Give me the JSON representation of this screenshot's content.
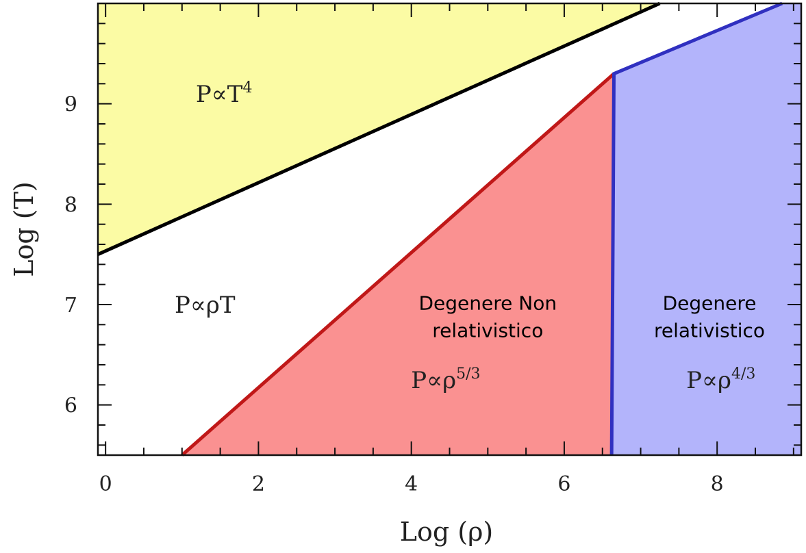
{
  "chart_data": {
    "type": "area",
    "xlabel": "Log (ρ)",
    "ylabel": "Log (T)",
    "xlim": [
      -0.1,
      9.1
    ],
    "ylim": [
      5.5,
      10.0
    ],
    "x_ticks": [
      "0",
      "2",
      "4",
      "6",
      "8"
    ],
    "y_ticks": [
      "6",
      "7",
      "8",
      "9"
    ],
    "boundaries": [
      {
        "color": "#000000",
        "points": [
          [
            -0.1,
            7.5
          ],
          [
            7.25,
            10.0
          ]
        ]
      },
      {
        "color": "#c01818",
        "points": [
          [
            1.0,
            5.5
          ],
          [
            6.65,
            9.3
          ]
        ]
      },
      {
        "color": "#3030c0",
        "points": [
          [
            6.62,
            5.5
          ],
          [
            6.65,
            9.3
          ],
          [
            8.85,
            10.0
          ]
        ]
      }
    ],
    "regions": [
      {
        "color": "#fbfba4",
        "formula_base": "P∝T",
        "formula_exp": "4",
        "label_position": [
          1.55,
          9.1
        ],
        "polygon": [
          [
            -0.1,
            7.5
          ],
          [
            7.25,
            10.0
          ],
          [
            -0.1,
            10.0
          ]
        ]
      },
      {
        "color": "#ffffff",
        "formula_base": "P∝ρT",
        "formula_exp": "",
        "label_position": [
          1.3,
          7.0
        ],
        "polygon": []
      },
      {
        "color": "#fa9191",
        "formula_base": "P∝ρ",
        "formula_exp": "5/3",
        "title_lines": [
          "Degenere Non",
          "relativistico"
        ],
        "title_position": [
          5.0,
          6.95
        ],
        "label_position": [
          4.45,
          6.25
        ],
        "polygon": [
          [
            1.0,
            5.5
          ],
          [
            6.65,
            9.3
          ],
          [
            6.62,
            5.5
          ]
        ]
      },
      {
        "color": "#b3b4fb",
        "formula_base": "P∝ρ",
        "formula_exp": "4/3",
        "title_lines": [
          "Degenere",
          "relativistico"
        ],
        "title_position": [
          7.9,
          6.95
        ],
        "label_position": [
          8.05,
          6.25
        ],
        "polygon": [
          [
            6.62,
            5.5
          ],
          [
            6.65,
            9.3
          ],
          [
            8.85,
            10.0
          ],
          [
            9.1,
            10.0
          ],
          [
            9.1,
            5.5
          ]
        ]
      }
    ],
    "grid": false,
    "legend": "none"
  }
}
